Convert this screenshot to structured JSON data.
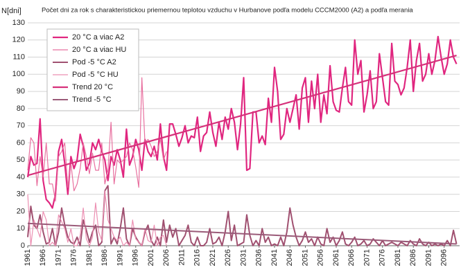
{
  "chart_data": {
    "type": "line",
    "title": "Počet dni za rok s charakteristickou priemernou teplotou vzduchu v Hurbanove podľa modelu CCCM2000 (A2) a podľa merania",
    "y_label": "N[dni]",
    "xlim": [
      1961,
      2101
    ],
    "ylim": [
      0,
      130
    ],
    "yticks": [
      0,
      10,
      20,
      30,
      40,
      50,
      60,
      70,
      80,
      90,
      100,
      110,
      120,
      130
    ],
    "xticks": [
      1961,
      1966,
      1971,
      1976,
      1981,
      1986,
      1991,
      1996,
      2001,
      2006,
      2011,
      2016,
      2021,
      2026,
      2031,
      2036,
      2041,
      2046,
      2051,
      2056,
      2061,
      2066,
      2071,
      2076,
      2081,
      2086,
      2091,
      2096
    ],
    "grid": true,
    "legend": "upper left",
    "x": [
      1961,
      1962,
      1963,
      1964,
      1965,
      1966,
      1967,
      1968,
      1969,
      1970,
      1971,
      1972,
      1973,
      1974,
      1975,
      1976,
      1977,
      1978,
      1979,
      1980,
      1981,
      1982,
      1983,
      1984,
      1985,
      1986,
      1987,
      1988,
      1989,
      1990,
      1991,
      1992,
      1993,
      1994,
      1995,
      1996,
      1997,
      1998,
      1999,
      2000,
      2001,
      2002,
      2003,
      2004,
      2005,
      2006,
      2007,
      2008,
      2009,
      2010,
      2011,
      2012,
      2013,
      2014,
      2015,
      2016,
      2017,
      2018,
      2019,
      2020,
      2021,
      2022,
      2023,
      2024,
      2025,
      2026,
      2027,
      2028,
      2029,
      2030,
      2031,
      2032,
      2033,
      2034,
      2035,
      2036,
      2037,
      2038,
      2039,
      2040,
      2041,
      2042,
      2043,
      2044,
      2045,
      2046,
      2047,
      2048,
      2049,
      2050,
      2051,
      2052,
      2053,
      2054,
      2055,
      2056,
      2057,
      2058,
      2059,
      2060,
      2061,
      2062,
      2063,
      2064,
      2065,
      2066,
      2067,
      2068,
      2069,
      2070,
      2071,
      2072,
      2073,
      2074,
      2075,
      2076,
      2077,
      2078,
      2079,
      2080,
      2081,
      2082,
      2083,
      2084,
      2085,
      2086,
      2087,
      2088,
      2089,
      2090,
      2091,
      2092,
      2093,
      2094,
      2095,
      2096,
      2097,
      2098,
      2099,
      2100
    ],
    "series": [
      {
        "name": "20 °C a viac A2",
        "color": "#e0267f",
        "width": 2.2,
        "values": [
          40,
          52,
          47,
          48,
          74,
          38,
          27,
          25,
          22,
          30,
          55,
          62,
          48,
          30,
          52,
          45,
          50,
          65,
          58,
          44,
          48,
          60,
          56,
          62,
          55,
          50,
          38,
          52,
          47,
          56,
          50,
          40,
          68,
          47,
          52,
          62,
          56,
          44,
          62,
          55,
          52,
          58,
          50,
          71,
          52,
          44,
          71,
          71,
          65,
          58,
          63,
          70,
          60,
          64,
          63,
          75,
          55,
          64,
          66,
          78,
          66,
          58,
          72,
          62,
          75,
          68,
          80,
          72,
          56,
          71,
          98,
          44,
          45,
          78,
          78,
          60,
          64,
          59,
          86,
          72,
          104,
          90,
          62,
          65,
          80,
          72,
          80,
          88,
          68,
          92,
          98,
          72,
          96,
          80,
          100,
          72,
          88,
          77,
          105,
          84,
          79,
          78,
          92,
          104,
          84,
          82,
          120,
          100,
          108,
          78,
          88,
          102,
          80,
          84,
          112,
          98,
          84,
          82,
          118,
          96,
          94,
          88,
          92,
          104,
          120,
          90,
          108,
          118,
          96,
          100,
          112,
          100,
          108,
          122,
          110,
          100,
          106,
          120,
          110,
          106
        ]
      },
      {
        "name": "20 °C a viac HU",
        "color": "#e8709f",
        "width": 1.2,
        "values": [
          44,
          63,
          60,
          35,
          52,
          40,
          60,
          36,
          36,
          26,
          52,
          55,
          60,
          34,
          48,
          32,
          36,
          45,
          60,
          52,
          42,
          54,
          44,
          44,
          60,
          36,
          44,
          72,
          36,
          50,
          48,
          50,
          52,
          60,
          56,
          46,
          34,
          98,
          60,
          62,
          58,
          52,
          55,
          62,
          50,
          55,
          null,
          null,
          null,
          null,
          null,
          null,
          null,
          null,
          null,
          null,
          null,
          null,
          null,
          null,
          null,
          null,
          null,
          null,
          null,
          null,
          null,
          null,
          null,
          null,
          null,
          null,
          null,
          null,
          null,
          null,
          null,
          null,
          null,
          null,
          null,
          null,
          null,
          null,
          null,
          null,
          null,
          null,
          null,
          null,
          null,
          null,
          null,
          null,
          null,
          null,
          null,
          null,
          null,
          null,
          null,
          null,
          null,
          null,
          null,
          null,
          null,
          null,
          null,
          null,
          null,
          null,
          null,
          null,
          null,
          null,
          null,
          null,
          null,
          null,
          null,
          null,
          null,
          null,
          null,
          null,
          null,
          null,
          null,
          null,
          null,
          null,
          null,
          null,
          null,
          null,
          null,
          null,
          null,
          null
        ]
      },
      {
        "name": "Pod -5 °C A2",
        "color": "#a05070",
        "width": 2,
        "values": [
          5,
          23,
          12,
          10,
          18,
          8,
          1,
          2,
          10,
          0,
          8,
          22,
          12,
          5,
          2,
          1,
          5,
          0,
          15,
          9,
          2,
          8,
          12,
          0,
          2,
          32,
          35,
          1,
          5,
          1,
          10,
          22,
          4,
          0,
          10,
          5,
          2,
          0,
          8,
          12,
          3,
          0,
          5,
          0,
          15,
          2,
          12,
          5,
          10,
          0,
          3,
          6,
          12,
          2,
          0,
          5,
          0,
          0,
          2,
          10,
          1,
          2,
          5,
          0,
          8,
          20,
          3,
          12,
          0,
          1,
          2,
          18,
          6,
          0,
          3,
          0,
          10,
          2,
          5,
          0,
          1,
          0,
          5,
          0,
          8,
          22,
          12,
          5,
          0,
          3,
          8,
          2,
          4,
          0,
          5,
          1,
          0,
          10,
          2,
          5,
          0,
          3,
          8,
          1,
          0,
          2,
          5,
          0,
          1,
          3,
          0,
          1,
          4,
          2,
          0,
          3,
          0,
          1,
          2,
          1,
          0,
          2,
          1,
          0,
          3,
          1,
          0,
          4,
          1,
          0,
          2,
          0,
          1,
          0,
          1,
          0,
          3,
          0,
          9,
          1
        ]
      },
      {
        "name": "Pod -5 °C HU",
        "color": "#ec8fb2",
        "width": 1.2,
        "values": [
          30,
          0,
          15,
          10,
          5,
          20,
          15,
          0,
          2,
          0,
          18,
          14,
          10,
          2,
          10,
          0,
          0,
          6,
          22,
          4,
          0,
          5,
          25,
          8,
          3,
          32,
          15,
          10,
          5,
          3,
          5,
          0,
          2,
          0,
          15,
          4,
          2,
          0,
          10,
          3,
          2,
          12,
          0,
          5,
          6,
          0,
          null,
          null,
          null,
          null,
          null,
          null,
          null,
          null,
          null,
          null,
          null,
          null,
          null,
          null,
          null,
          null,
          null,
          null,
          null,
          null,
          null,
          null,
          null,
          null,
          null,
          null,
          null,
          null,
          null,
          null,
          null,
          null,
          null,
          null,
          null,
          null,
          null,
          null,
          null,
          null,
          null,
          null,
          null,
          null,
          null,
          null,
          null,
          null,
          null,
          null,
          null,
          null,
          null,
          null,
          null,
          null,
          null,
          null,
          null,
          null,
          null,
          null,
          null,
          null,
          null,
          null,
          null,
          null,
          null,
          null,
          null,
          null,
          null,
          null,
          null,
          null,
          null,
          null,
          null,
          null,
          null,
          null,
          null,
          null,
          null,
          null,
          null,
          null,
          null,
          null,
          null,
          null,
          null,
          null
        ]
      },
      {
        "name": "Trend 20 °C",
        "color": "#d6307a",
        "width": 2.2,
        "x": [
          1961,
          2100
        ],
        "values": [
          41,
          111
        ]
      },
      {
        "name": "Trend -5 °C",
        "color": "#9a5a78",
        "width": 2,
        "x": [
          1961,
          2100
        ],
        "values": [
          13,
          1
        ]
      }
    ]
  }
}
